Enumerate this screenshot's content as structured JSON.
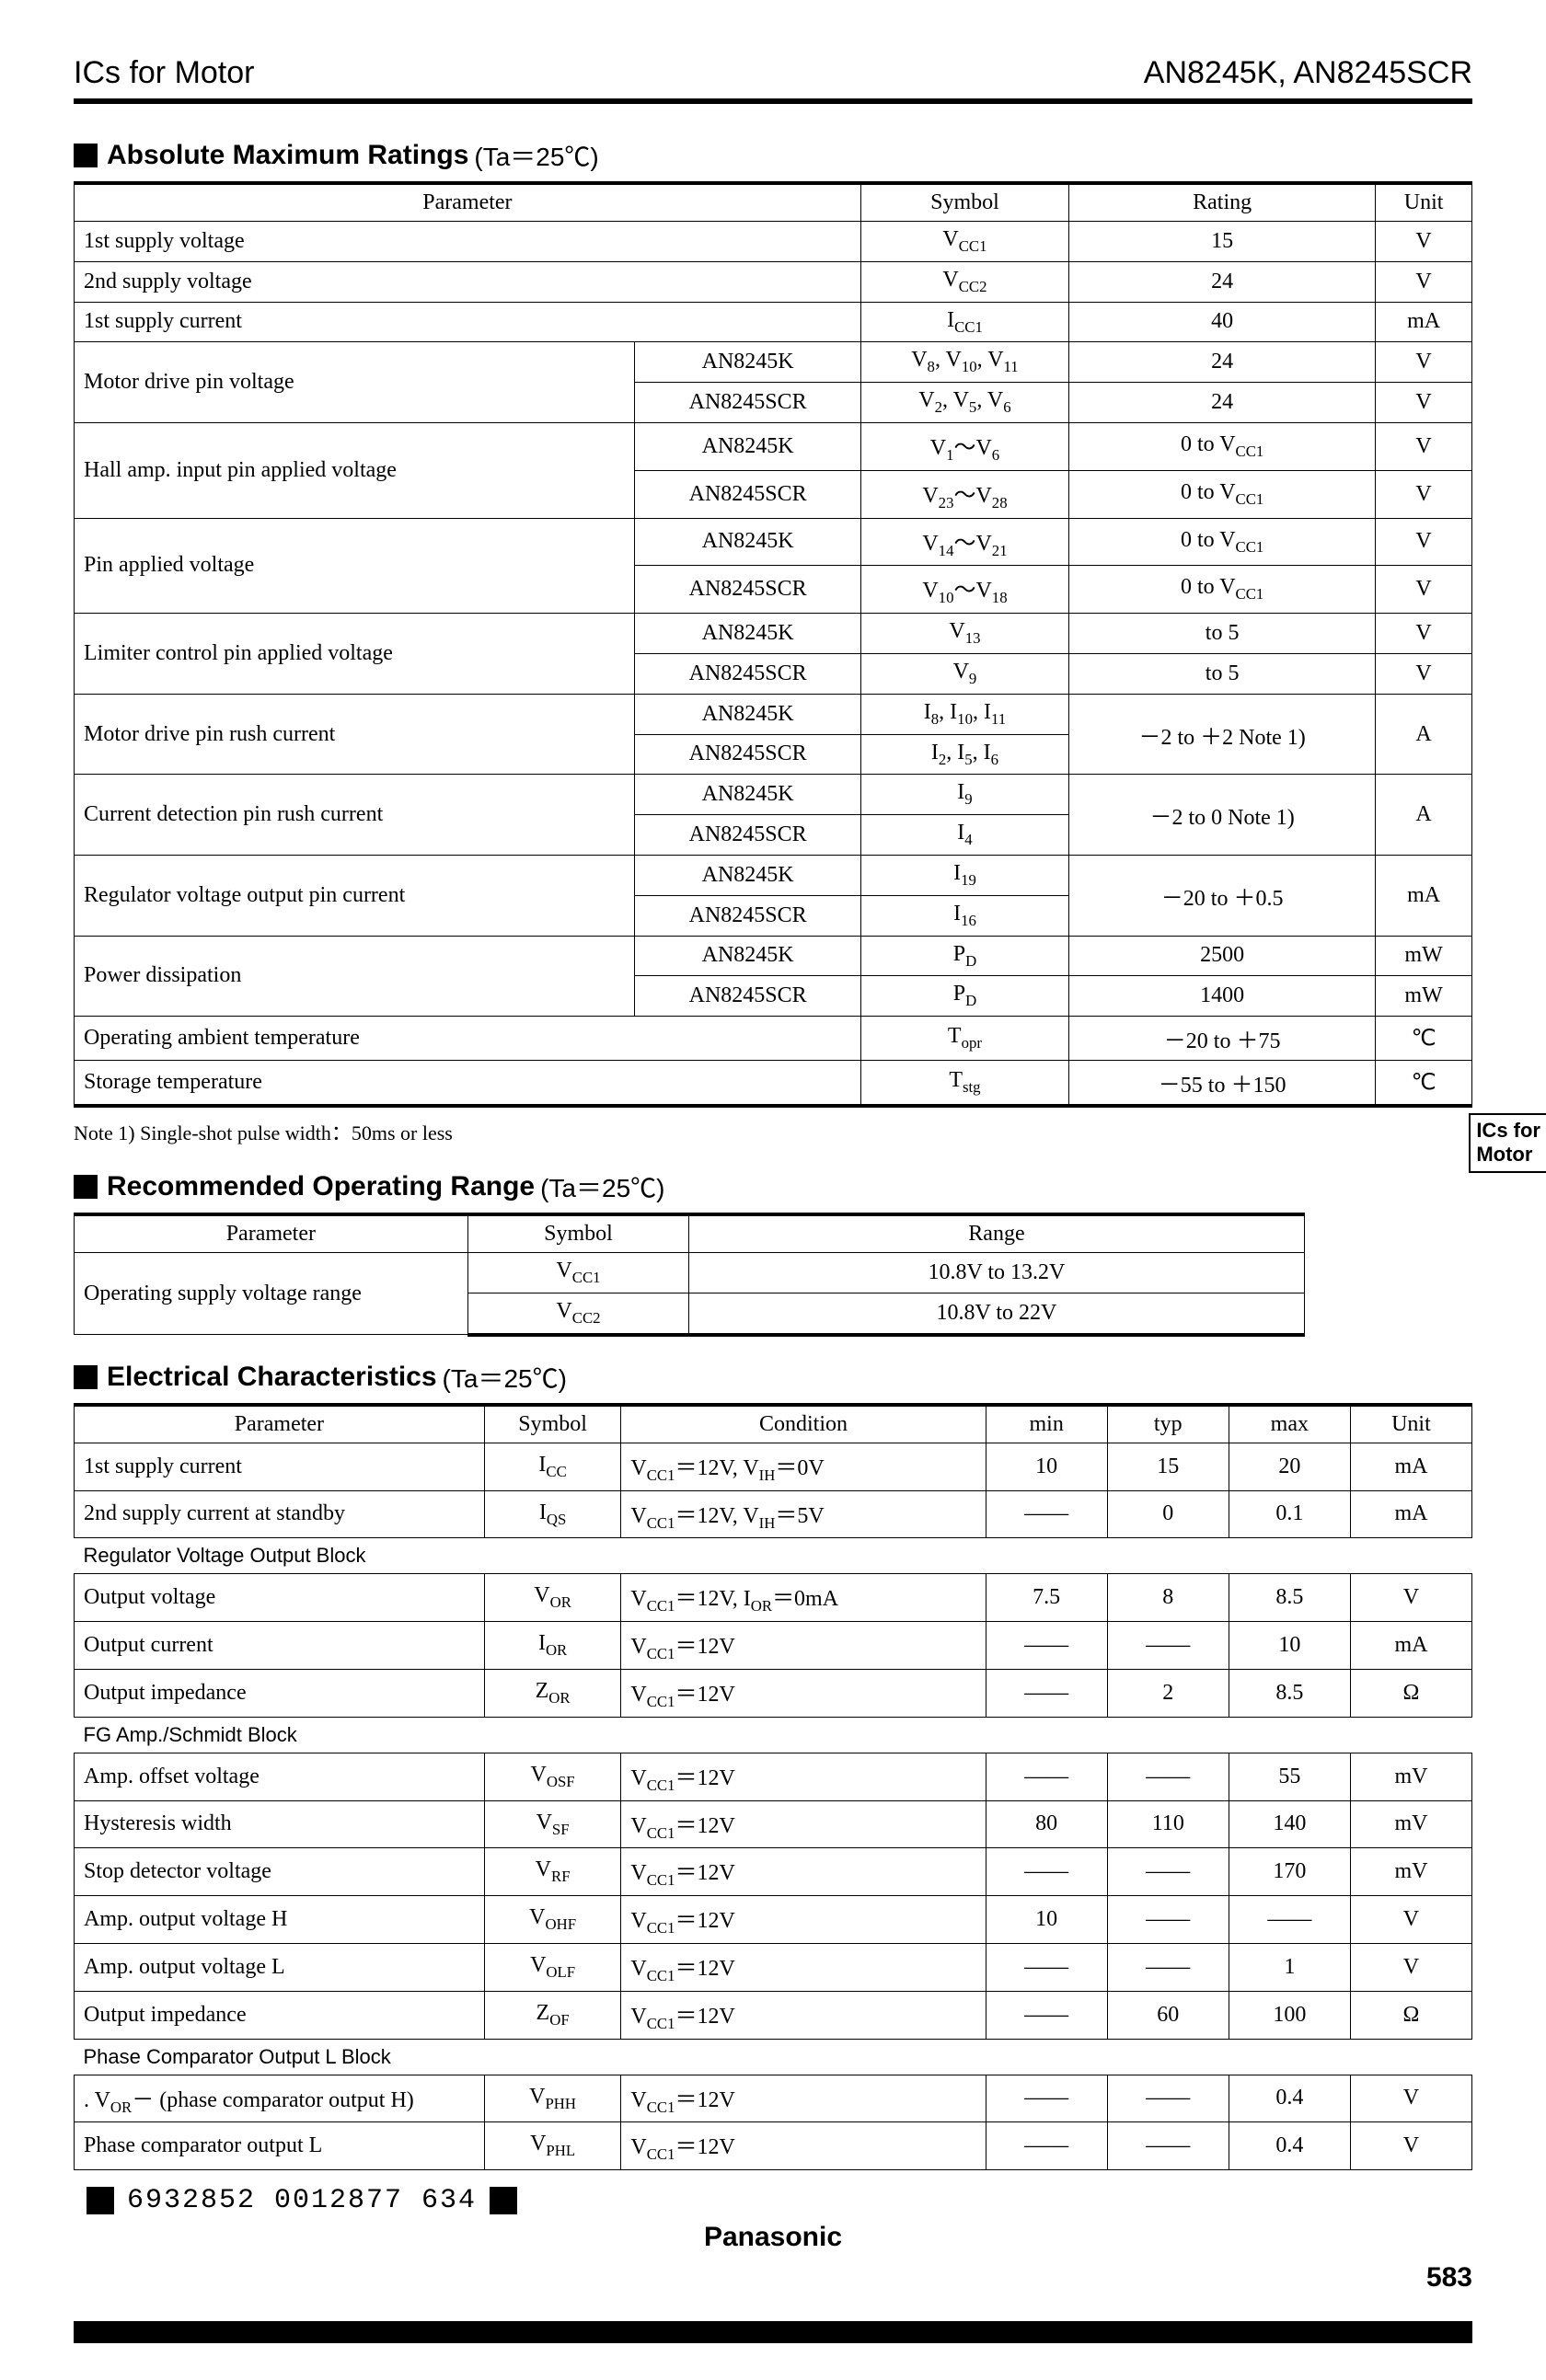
{
  "header": {
    "left": "ICs for Motor",
    "right": "AN8245K, AN8245SCR"
  },
  "sideTab": {
    "l1": "ICs for",
    "l2": "Motor"
  },
  "sections": {
    "abs": {
      "title": "Absolute Maximum Ratings",
      "cond": "(Ta＝25℃)"
    },
    "rec": {
      "title": "Recommended Operating Range",
      "cond": "(Ta＝25℃)"
    },
    "ele": {
      "title": "Electrical Characteristics",
      "cond": "(Ta＝25℃)"
    }
  },
  "absHead": {
    "param": "Parameter",
    "symbol": "Symbol",
    "rating": "Rating",
    "unit": "Unit"
  },
  "abs": [
    {
      "param": "1st supply voltage",
      "variant": "",
      "symbol": "V_CC1",
      "rating": "15",
      "unit": "V",
      "span": 1
    },
    {
      "param": "2nd supply voltage",
      "variant": "",
      "symbol": "V_CC2",
      "rating": "24",
      "unit": "V",
      "span": 1
    },
    {
      "param": "1st supply current",
      "variant": "",
      "symbol": "I_CC1",
      "rating": "40",
      "unit": "mA",
      "span": 1
    },
    {
      "param": "Motor drive pin voltage",
      "variant": "AN8245K",
      "symbol": "V_8, V_10, V_11",
      "rating": "24",
      "unit": "V",
      "span": 2
    },
    {
      "param": "",
      "variant": "AN8245SCR",
      "symbol": "V_2, V_5, V_6",
      "rating": "24",
      "unit": "V",
      "span": 0
    },
    {
      "param": "Hall amp. input pin applied voltage",
      "variant": "AN8245K",
      "symbol": "V_1～V_6",
      "rating": "0 to V_CC1",
      "unit": "V",
      "span": 2
    },
    {
      "param": "",
      "variant": "AN8245SCR",
      "symbol": "V_23～V_28",
      "rating": "0 to V_CC1",
      "unit": "V",
      "span": 0
    },
    {
      "param": "Pin applied voltage",
      "variant": "AN8245K",
      "symbol": "V_14～V_21",
      "rating": "0 to V_CC1",
      "unit": "V",
      "span": 2
    },
    {
      "param": "",
      "variant": "AN8245SCR",
      "symbol": "V_10～V_18",
      "rating": "0 to V_CC1",
      "unit": "V",
      "span": 0
    },
    {
      "param": "Limiter control pin applied voltage",
      "variant": "AN8245K",
      "symbol": "V_13",
      "rating": "to 5",
      "unit": "V",
      "span": 2
    },
    {
      "param": "",
      "variant": "AN8245SCR",
      "symbol": "V_9",
      "rating": "to 5",
      "unit": "V",
      "span": 0
    },
    {
      "param": "Motor drive pin rush current",
      "variant": "AN8245K",
      "symbol": "I_8, I_10, I_11",
      "rating": "－2 to ＋2 Note 1)",
      "unit": "A",
      "span": 2,
      "mergeRU": true
    },
    {
      "param": "",
      "variant": "AN8245SCR",
      "symbol": "I_2, I_5, I_6",
      "rating": "",
      "unit": "",
      "span": 0
    },
    {
      "param": "Current detection pin rush current",
      "variant": "AN8245K",
      "symbol": "I_9",
      "rating": "－2 to 0 Note 1)",
      "unit": "A",
      "span": 2,
      "mergeRU": true
    },
    {
      "param": "",
      "variant": "AN8245SCR",
      "symbol": "I_4",
      "rating": "",
      "unit": "",
      "span": 0
    },
    {
      "param": "Regulator voltage output pin current",
      "variant": "AN8245K",
      "symbol": "I_19",
      "rating": "－20 to ＋0.5",
      "unit": "mA",
      "span": 2,
      "mergeRU": true
    },
    {
      "param": "",
      "variant": "AN8245SCR",
      "symbol": "I_16",
      "rating": "",
      "unit": "",
      "span": 0
    },
    {
      "param": "Power dissipation",
      "variant": "AN8245K",
      "symbol": "P_D",
      "rating": "2500",
      "unit": "mW",
      "span": 2
    },
    {
      "param": "",
      "variant": "AN8245SCR",
      "symbol": "P_D",
      "rating": "1400",
      "unit": "mW",
      "span": 0
    },
    {
      "param": "Operating ambient temperature",
      "variant": "",
      "symbol": "T_opr",
      "rating": "－20 to ＋75",
      "unit": "℃",
      "span": 1
    },
    {
      "param": "Storage temperature",
      "variant": "",
      "symbol": "T_stg",
      "rating": "－55 to ＋150",
      "unit": "℃",
      "span": 1
    }
  ],
  "absNote": "Note 1)  Single-shot pulse width：50ms or less",
  "recHead": {
    "param": "Parameter",
    "symbol": "Symbol",
    "range": "Range"
  },
  "rec": {
    "param": "Operating supply voltage range",
    "rows": [
      {
        "symbol": "V_CC1",
        "range": "10.8V to 13.2V"
      },
      {
        "symbol": "V_CC2",
        "range": "10.8V to 22V"
      }
    ]
  },
  "eleHead": {
    "param": "Parameter",
    "symbol": "Symbol",
    "cond": "Condition",
    "min": "min",
    "typ": "typ",
    "max": "max",
    "unit": "Unit"
  },
  "ele": [
    {
      "type": "row",
      "param": "1st supply current",
      "symbol": "I_CC",
      "cond": "V_CC1＝12V, V_IH＝0V",
      "min": "10",
      "typ": "15",
      "max": "20",
      "unit": "mA"
    },
    {
      "type": "row",
      "param": "2nd supply current at standby",
      "symbol": "I_QS",
      "cond": "V_CC1＝12V, V_IH＝5V",
      "min": "——",
      "typ": "0",
      "max": "0.1",
      "unit": "mA"
    },
    {
      "type": "sub",
      "label": "Regulator Voltage Output Block"
    },
    {
      "type": "row",
      "param": "Output voltage",
      "symbol": "V_OR",
      "cond": "V_CC1＝12V, I_OR＝0mA",
      "min": "7.5",
      "typ": "8",
      "max": "8.5",
      "unit": "V"
    },
    {
      "type": "row",
      "param": "Output current",
      "symbol": "I_OR",
      "cond": "V_CC1＝12V",
      "min": "——",
      "typ": "——",
      "max": "10",
      "unit": "mA"
    },
    {
      "type": "row",
      "param": "Output impedance",
      "symbol": "Z_OR",
      "cond": "V_CC1＝12V",
      "min": "——",
      "typ": "2",
      "max": "8.5",
      "unit": "Ω"
    },
    {
      "type": "sub",
      "label": "FG Amp./Schmidt Block"
    },
    {
      "type": "row",
      "param": "Amp. offset voltage",
      "symbol": "V_OSF",
      "cond": "V_CC1＝12V",
      "min": "——",
      "typ": "——",
      "max": "55",
      "unit": "mV"
    },
    {
      "type": "row",
      "param": "Hysteresis width",
      "symbol": "V_SF",
      "cond": "V_CC1＝12V",
      "min": "80",
      "typ": "110",
      "max": "140",
      "unit": "mV"
    },
    {
      "type": "row",
      "param": "Stop detector voltage",
      "symbol": "V_RF",
      "cond": "V_CC1＝12V",
      "min": "——",
      "typ": "——",
      "max": "170",
      "unit": "mV"
    },
    {
      "type": "row",
      "param": "Amp. output voltage H",
      "symbol": "V_OHF",
      "cond": "V_CC1＝12V",
      "min": "10",
      "typ": "——",
      "max": "——",
      "unit": "V"
    },
    {
      "type": "row",
      "param": "Amp. output voltage L",
      "symbol": "V_OLF",
      "cond": "V_CC1＝12V",
      "min": "——",
      "typ": "——",
      "max": "1",
      "unit": "V"
    },
    {
      "type": "row",
      "param": "Output impedance",
      "symbol": "Z_OF",
      "cond": "V_CC1＝12V",
      "min": "——",
      "typ": "60",
      "max": "100",
      "unit": "Ω"
    },
    {
      "type": "sub",
      "label": "Phase Comparator Output L Block"
    },
    {
      "type": "row",
      "param": ". V_OR－  (phase comparator output H)",
      "symbol": "V_PHH",
      "cond": "V_CC1＝12V",
      "min": "——",
      "typ": "——",
      "max": "0.4",
      "unit": "V"
    },
    {
      "type": "row",
      "param": "Phase comparator output L",
      "symbol": "V_PHL",
      "cond": "V_CC1＝12V",
      "min": "——",
      "typ": "——",
      "max": "0.4",
      "unit": "V"
    }
  ],
  "footer": {
    "code": "6932852 0012877 634",
    "brand": "Panasonic",
    "page": "583"
  },
  "colors": {
    "fg": "#000000",
    "bg": "#ffffff"
  }
}
